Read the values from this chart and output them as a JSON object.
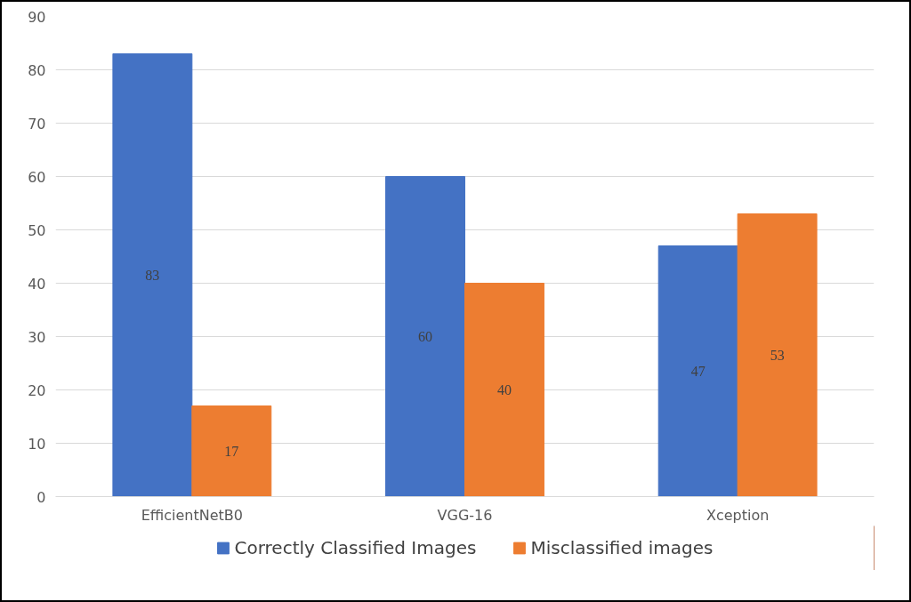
{
  "chart_data": {
    "type": "bar",
    "categories": [
      "EfficientNetB0",
      "VGG-16",
      "Xception"
    ],
    "series": [
      {
        "name": "Correctly Classified Images",
        "color": "#4472c4",
        "values": [
          83,
          60,
          47
        ]
      },
      {
        "name": "Misclassified images",
        "color": "#ed7d31",
        "values": [
          17,
          40,
          53
        ]
      }
    ],
    "ylim": [
      0,
      90
    ],
    "yticks": [
      0,
      10,
      20,
      30,
      40,
      50,
      60,
      70,
      80,
      90
    ],
    "grid": "y",
    "legend": "bottom",
    "data_labels": true
  }
}
